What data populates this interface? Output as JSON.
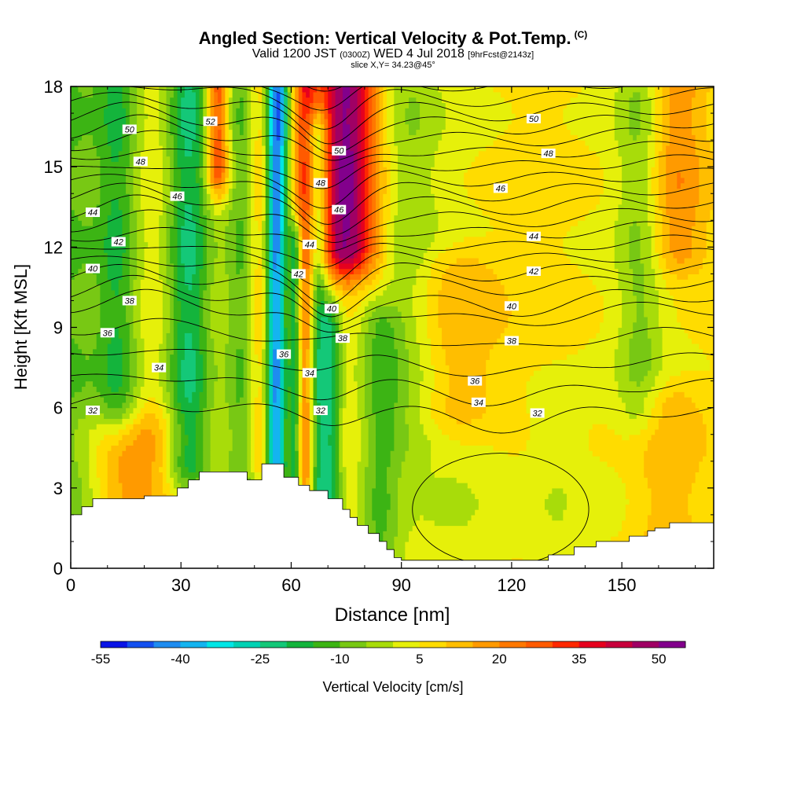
{
  "header": {
    "title": "Angled Section: Vertical Velocity & Pot.Temp.",
    "title_units": "(C)",
    "valid_prefix": "Valid 1200 JST",
    "valid_utc": "(0300Z)",
    "valid_date": "WED 4 Jul 2018",
    "forecast": "[9hrFcst@2143z]",
    "slice": "slice X,Y= 34.23@45°"
  },
  "chart_data": {
    "type": "heatmap",
    "xlabel": "Distance [nm]",
    "ylabel": "Height [Kft MSL]",
    "xlim": [
      0,
      175
    ],
    "ylim": [
      0,
      18
    ],
    "x_ticks": [
      0,
      30,
      60,
      90,
      120,
      150
    ],
    "y_ticks": [
      0,
      3,
      6,
      9,
      12,
      15,
      18
    ],
    "colorbar": {
      "label": "Vertical Velocity [cm/s]",
      "min": -55,
      "max": 55,
      "step": 5,
      "tick_values": [
        -55,
        -40,
        -25,
        -10,
        5,
        20,
        35,
        50
      ],
      "colors": [
        "#0a14e6",
        "#1450f0",
        "#1e8cf0",
        "#14b4f0",
        "#00e6e6",
        "#00d2b4",
        "#14c878",
        "#14b43c",
        "#3cb414",
        "#78c814",
        "#a8dc0a",
        "#e6f00a",
        "#ffdc00",
        "#ffbe00",
        "#ff9a00",
        "#ff7800",
        "#ff5a00",
        "#ff2800",
        "#e6001e",
        "#c8003c",
        "#a00064",
        "#82008c"
      ]
    },
    "velocity_features": [
      {
        "x": 0,
        "w": 10,
        "v": -15,
        "z0": 0,
        "z1": 18
      },
      {
        "x": 13,
        "w": 6,
        "v": -20,
        "z0": 6,
        "z1": 18
      },
      {
        "x": 17,
        "w": 14,
        "v": 12,
        "z0": 0,
        "z1": 5
      },
      {
        "x": 32,
        "w": 6,
        "v": -25,
        "z0": 4,
        "z1": 18
      },
      {
        "x": 40,
        "w": 3,
        "v": 30,
        "z0": 15,
        "z1": 18
      },
      {
        "x": 47,
        "w": 5,
        "v": -15,
        "z0": 3,
        "z1": 18
      },
      {
        "x": 52,
        "w": 4,
        "v": 15,
        "z0": 4,
        "z1": 18
      },
      {
        "x": 56,
        "w": 3,
        "v": -55,
        "z0": 4,
        "z1": 18
      },
      {
        "x": 59,
        "w": 3,
        "v": 12,
        "z0": 3,
        "z1": 12
      },
      {
        "x": 61,
        "w": 2,
        "v": -35,
        "z0": 3,
        "z1": 12
      },
      {
        "x": 64,
        "w": 3,
        "v": 25,
        "z0": 3,
        "z1": 18
      },
      {
        "x": 67,
        "w": 3,
        "v": -28,
        "z0": 2,
        "z1": 16
      },
      {
        "x": 71,
        "w": 3,
        "v": -22,
        "z0": 1,
        "z1": 9
      },
      {
        "x": 75,
        "w": 8,
        "v": 45,
        "z0": 12,
        "z1": 18
      },
      {
        "x": 84,
        "w": 6,
        "v": -15,
        "z0": 0,
        "z1": 9
      },
      {
        "x": 92,
        "w": 8,
        "v": -8,
        "z0": 5,
        "z1": 18
      },
      {
        "x": 105,
        "w": 12,
        "v": 10,
        "z0": 6,
        "z1": 11
      },
      {
        "x": 110,
        "w": 18,
        "v": -3,
        "z0": 0,
        "z1": 5
      },
      {
        "x": 132,
        "w": 8,
        "v": -5,
        "z0": 0,
        "z1": 6
      },
      {
        "x": 155,
        "w": 6,
        "v": -10,
        "z0": 6,
        "z1": 18
      },
      {
        "x": 165,
        "w": 8,
        "v": 15,
        "z0": 12,
        "z1": 18
      },
      {
        "x": 162,
        "w": 10,
        "v": 10,
        "z0": 0,
        "z1": 6
      }
    ],
    "terrain": [
      [
        0,
        2.0
      ],
      [
        3,
        2.0
      ],
      [
        3,
        2.3
      ],
      [
        6,
        2.3
      ],
      [
        6,
        2.6
      ],
      [
        20,
        2.6
      ],
      [
        20,
        2.7
      ],
      [
        29,
        2.7
      ],
      [
        29,
        3.0
      ],
      [
        32,
        3.0
      ],
      [
        32,
        3.3
      ],
      [
        35,
        3.3
      ],
      [
        35,
        3.6
      ],
      [
        48,
        3.6
      ],
      [
        48,
        3.3
      ],
      [
        52,
        3.3
      ],
      [
        52,
        3.9
      ],
      [
        58,
        3.9
      ],
      [
        58,
        3.4
      ],
      [
        62,
        3.4
      ],
      [
        62,
        3.1
      ],
      [
        65,
        3.1
      ],
      [
        65,
        2.9
      ],
      [
        70,
        2.9
      ],
      [
        70,
        2.6
      ],
      [
        74,
        2.6
      ],
      [
        74,
        2.2
      ],
      [
        76,
        2.2
      ],
      [
        76,
        1.9
      ],
      [
        78,
        1.9
      ],
      [
        78,
        1.6
      ],
      [
        81,
        1.6
      ],
      [
        81,
        1.3
      ],
      [
        84,
        1.3
      ],
      [
        84,
        1.0
      ],
      [
        86,
        1.0
      ],
      [
        86,
        0.7
      ],
      [
        88,
        0.7
      ],
      [
        88,
        0.4
      ],
      [
        90,
        0.4
      ],
      [
        90,
        0.3
      ],
      [
        130,
        0.3
      ],
      [
        130,
        0.5
      ],
      [
        137,
        0.5
      ],
      [
        137,
        0.8
      ],
      [
        143,
        0.8
      ],
      [
        143,
        1.0
      ],
      [
        152,
        1.0
      ],
      [
        152,
        1.2
      ],
      [
        157,
        1.2
      ],
      [
        157,
        1.4
      ],
      [
        159,
        1.4
      ],
      [
        159,
        1.5
      ],
      [
        163,
        1.5
      ],
      [
        163,
        1.7
      ],
      [
        175,
        1.7
      ]
    ],
    "isentropes": {
      "levels": [
        32,
        33,
        34,
        35,
        36,
        37,
        38,
        39,
        40,
        41,
        42,
        43,
        44,
        45,
        46,
        47,
        48,
        49,
        50,
        51,
        52,
        53,
        54
      ],
      "labels": [
        {
          "text": "32",
          "x": 6,
          "z": 5.9
        },
        {
          "text": "32",
          "x": 68,
          "z": 5.9
        },
        {
          "text": "32",
          "x": 127,
          "z": 5.8
        },
        {
          "text": "34",
          "x": 24,
          "z": 7.5
        },
        {
          "text": "34",
          "x": 65,
          "z": 7.3
        },
        {
          "text": "34",
          "x": 111,
          "z": 6.2
        },
        {
          "text": "36",
          "x": 10,
          "z": 8.8
        },
        {
          "text": "36",
          "x": 58,
          "z": 8.0
        },
        {
          "text": "36",
          "x": 110,
          "z": 7.0
        },
        {
          "text": "38",
          "x": 16,
          "z": 10.0
        },
        {
          "text": "38",
          "x": 74,
          "z": 8.6
        },
        {
          "text": "38",
          "x": 120,
          "z": 8.5
        },
        {
          "text": "40",
          "x": 6,
          "z": 11.2
        },
        {
          "text": "40",
          "x": 71,
          "z": 9.7
        },
        {
          "text": "40",
          "x": 120,
          "z": 9.8
        },
        {
          "text": "42",
          "x": 13,
          "z": 12.2
        },
        {
          "text": "42",
          "x": 62,
          "z": 11.0
        },
        {
          "text": "42",
          "x": 126,
          "z": 11.1
        },
        {
          "text": "44",
          "x": 6,
          "z": 13.3
        },
        {
          "text": "44",
          "x": 65,
          "z": 12.1
        },
        {
          "text": "44",
          "x": 126,
          "z": 12.4
        },
        {
          "text": "46",
          "x": 29,
          "z": 13.9
        },
        {
          "text": "46",
          "x": 73,
          "z": 13.4
        },
        {
          "text": "46",
          "x": 117,
          "z": 14.2
        },
        {
          "text": "48",
          "x": 19,
          "z": 15.2
        },
        {
          "text": "48",
          "x": 68,
          "z": 14.4
        },
        {
          "text": "48",
          "x": 130,
          "z": 15.5
        },
        {
          "text": "50",
          "x": 16,
          "z": 16.4
        },
        {
          "text": "50",
          "x": 73,
          "z": 15.6
        },
        {
          "text": "50",
          "x": 126,
          "z": 16.8
        },
        {
          "text": "52",
          "x": 38,
          "z": 16.7
        }
      ]
    }
  }
}
